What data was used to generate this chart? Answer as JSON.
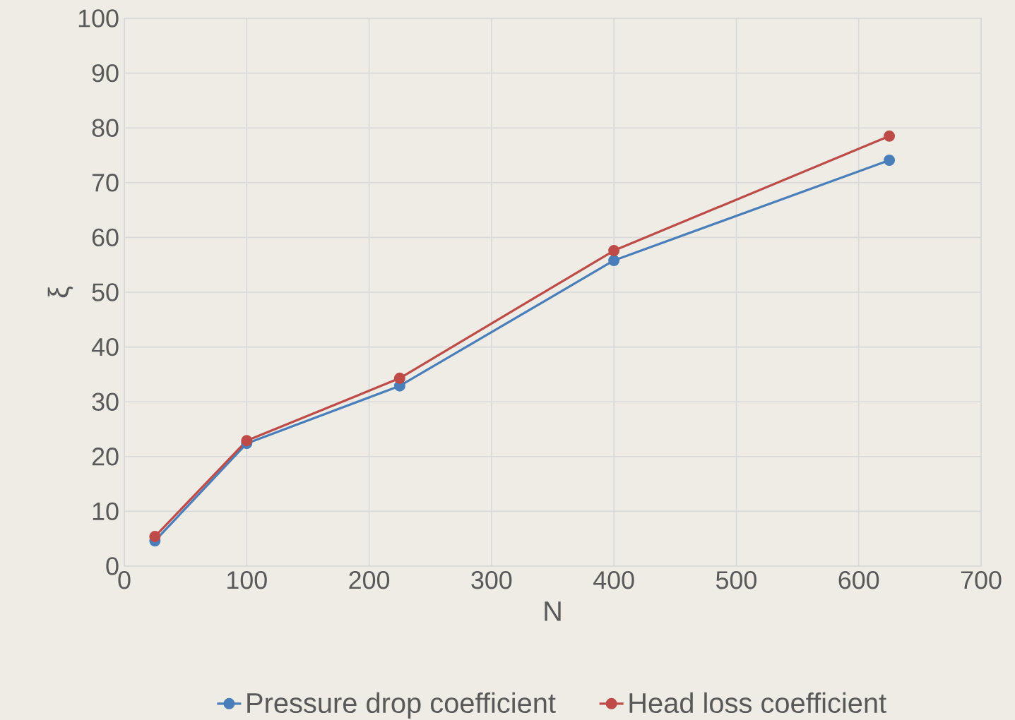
{
  "chart_data": {
    "type": "line",
    "xlabel": "N",
    "ylabel": "ξ",
    "xlim": [
      0,
      700
    ],
    "xticks": [
      0,
      100,
      200,
      300,
      400,
      500,
      600,
      700
    ],
    "ylim": [
      0,
      100
    ],
    "yticks": [
      0,
      10,
      20,
      30,
      40,
      50,
      60,
      70,
      80,
      90,
      100
    ],
    "grid": true,
    "legend": "bottom",
    "marker": "circle",
    "line_style": "solid",
    "series": [
      {
        "name": "Pressure drop coefficient",
        "color": "#4a7ebb",
        "x": [
          25,
          100,
          225,
          400,
          625
        ],
        "values": [
          4.6,
          22.4,
          32.9,
          55.8,
          74.1
        ]
      },
      {
        "name": "Head loss coefficient",
        "color": "#be4b48",
        "x": [
          25,
          100,
          225,
          400,
          625
        ],
        "values": [
          5.4,
          22.9,
          34.3,
          57.6,
          78.5
        ]
      }
    ]
  }
}
